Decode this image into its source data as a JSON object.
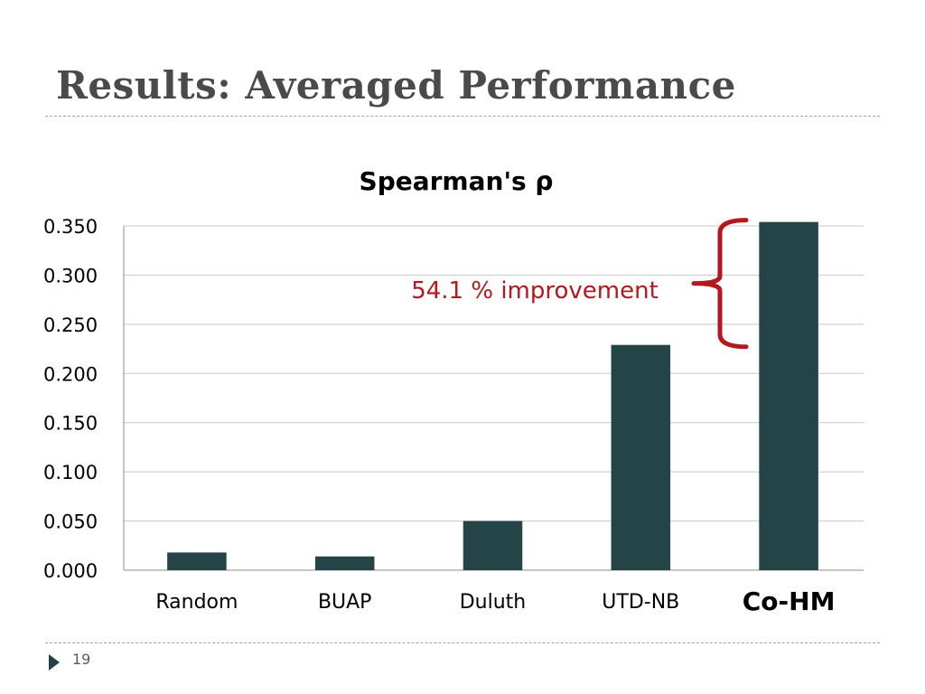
{
  "slide": {
    "title": "Results: Averaged Performance",
    "page_number": "19"
  },
  "chart_data": {
    "type": "bar",
    "title": "Spearman's ρ",
    "categories": [
      "Random",
      "BUAP",
      "Duluth",
      "UTD-NB",
      "Co-HM"
    ],
    "emphasized_category": "Co-HM",
    "values": [
      0.018,
      0.014,
      0.05,
      0.229,
      0.354
    ],
    "ylim": [
      0,
      0.35
    ],
    "yticks": [
      "0.000",
      "0.050",
      "0.100",
      "0.150",
      "0.200",
      "0.250",
      "0.300",
      "0.350"
    ],
    "ytick_values": [
      0,
      0.05,
      0.1,
      0.15,
      0.2,
      0.25,
      0.3,
      0.35
    ],
    "grid": true,
    "legend": "none",
    "bar_color": "#244447",
    "annotation": {
      "text": "54.1 %  improvement",
      "color": "#b5171f",
      "from_value": 0.229,
      "to_value": 0.354
    }
  }
}
